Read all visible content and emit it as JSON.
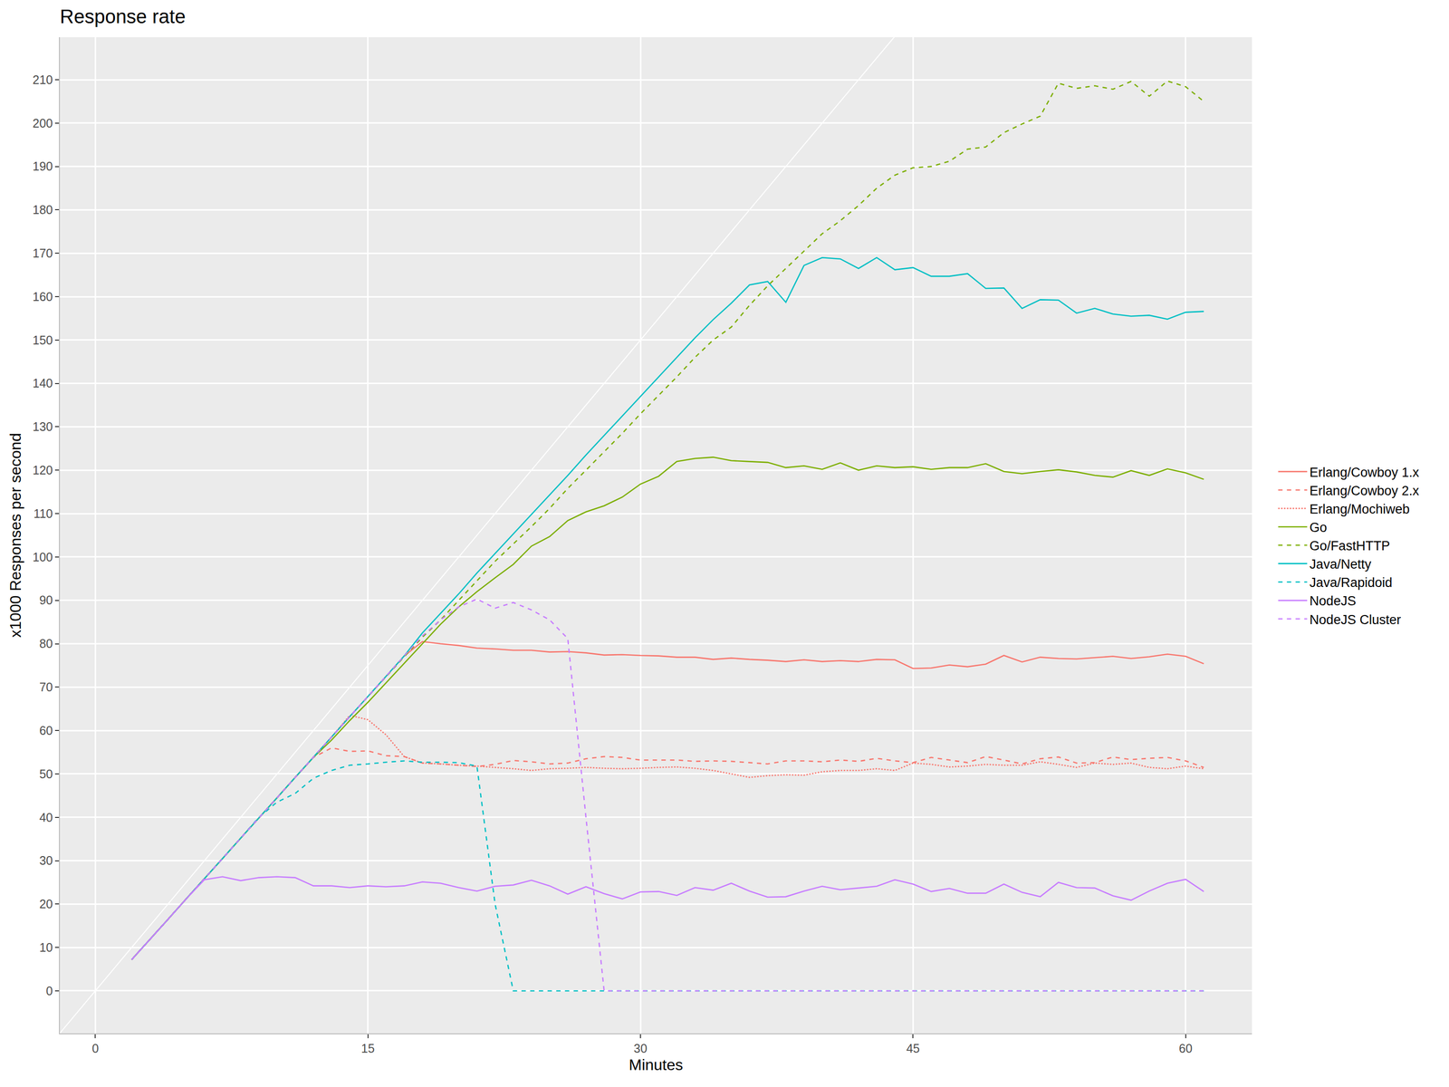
{
  "chart_data": {
    "type": "line",
    "title": "Response rate",
    "x_label": "Minutes",
    "y_label": "x1000 Responses per second",
    "x": [
      2,
      3,
      4,
      5,
      6,
      7,
      8,
      9,
      10,
      11,
      12,
      13,
      14,
      15,
      16,
      17,
      18,
      19,
      20,
      21,
      22,
      23,
      24,
      25,
      26,
      27,
      28,
      29,
      30,
      31,
      32,
      33,
      34,
      35,
      36,
      37,
      38,
      39,
      40,
      41,
      42,
      43,
      44,
      45,
      46,
      47,
      48,
      49,
      50,
      51,
      52,
      53,
      54,
      55,
      56,
      57,
      58,
      59,
      60,
      61
    ],
    "series": [
      {
        "name": "Erlang/Cowboy 1.x",
        "color": "#F8766D",
        "line_style": "solid",
        "values": [
          7.2,
          11.8,
          16.5,
          21.2,
          25.8,
          30.5,
          35.2,
          39.8,
          44.5,
          49.2,
          53.8,
          58.5,
          63.2,
          67.8,
          72.5,
          77.2,
          80.5,
          80,
          79.6,
          79,
          78.8,
          78.5,
          78.5,
          78.1,
          78.2,
          77.9,
          77.4,
          77.5,
          77.3,
          77.2,
          76.9,
          76.9,
          76.4,
          76.7,
          76.4,
          76.2,
          75.9,
          76.3,
          75.9,
          76.1,
          75.9,
          76.4,
          76.3,
          74.3,
          74.4,
          75.1,
          74.7,
          75.3,
          77.3,
          75.8,
          76.9,
          76.6,
          76.5,
          76.8,
          77.1,
          76.6,
          77,
          77.6,
          77.1,
          75.4
        ]
      },
      {
        "name": "Erlang/Cowboy 2.x",
        "color": "#F8766D",
        "line_style": "dashed",
        "values": [
          7.2,
          11.8,
          16.5,
          21.2,
          25.8,
          30.5,
          35.2,
          39.8,
          44.5,
          49.2,
          53.8,
          56,
          55.2,
          55.3,
          54.2,
          54,
          52.5,
          52.3,
          52,
          51.7,
          52.2,
          53.1,
          52.8,
          52.3,
          52.5,
          53.5,
          54,
          53.8,
          53.2,
          53.2,
          53.2,
          52.9,
          53,
          52.9,
          52.6,
          52.3,
          53,
          53,
          52.8,
          53.2,
          52.9,
          53.6,
          53,
          52.6,
          53.8,
          53.2,
          52.6,
          54,
          53.2,
          52.3,
          53.5,
          53.9,
          52.5,
          52.6,
          53.9,
          53.3,
          53.6,
          53.8,
          53,
          51.5
        ]
      },
      {
        "name": "Erlang/Mochiweb",
        "color": "#F8766D",
        "line_style": "dotted",
        "values": [
          7.2,
          11.8,
          16.5,
          21.2,
          25.8,
          30.5,
          35.2,
          39.8,
          44.5,
          49.2,
          53.8,
          58.5,
          63.5,
          62.5,
          59,
          54,
          52.5,
          52.3,
          52,
          51.8,
          51.5,
          51.2,
          50.8,
          51.2,
          51.3,
          51.5,
          51.3,
          51.2,
          51.3,
          51.5,
          51.6,
          51.3,
          50.8,
          50,
          49.2,
          49.6,
          49.8,
          49.7,
          50.5,
          50.8,
          50.8,
          51.2,
          50.8,
          52.5,
          52.2,
          51.6,
          51.8,
          52.2,
          52,
          52,
          52.8,
          52.2,
          51.5,
          52.5,
          52.2,
          52.5,
          51.5,
          51.2,
          51.8,
          51.2
        ]
      },
      {
        "name": "Go",
        "color": "#7CAE00",
        "line_style": "solid",
        "values": [
          7.2,
          11.8,
          16.5,
          21.2,
          25.8,
          30.5,
          35.2,
          39.8,
          44.5,
          49.2,
          53.8,
          57.8,
          62.3,
          66.5,
          71,
          75.5,
          80,
          84.5,
          88.5,
          92,
          95.2,
          98.3,
          102.5,
          104.7,
          108.4,
          110.4,
          111.8,
          113.8,
          116.8,
          118.6,
          122,
          122.7,
          123,
          122.2,
          122,
          121.8,
          120.6,
          121,
          120.2,
          121.7,
          120,
          121,
          120.6,
          120.8,
          120.2,
          120.6,
          120.6,
          121.5,
          119.7,
          119.2,
          119.7,
          120.1,
          119.6,
          118.8,
          118.4,
          119.9,
          118.8,
          120.3,
          119.4,
          117.9
        ]
      },
      {
        "name": "Go/FastHTTP",
        "color": "#7CAE00",
        "line_style": "dashed",
        "values": [
          7.2,
          11.8,
          16.5,
          21.2,
          25.8,
          30.5,
          35.2,
          39.8,
          44.5,
          49.2,
          53.8,
          58.5,
          63.2,
          67.8,
          72.5,
          77,
          81.5,
          85.5,
          90,
          94.5,
          99,
          103,
          107,
          111.2,
          115.8,
          120,
          124.2,
          128.5,
          133,
          137.2,
          141.5,
          146,
          150,
          153,
          158,
          162.5,
          166.5,
          170.5,
          174.5,
          177.5,
          181,
          185,
          188,
          189.7,
          190,
          191.2,
          194,
          194.5,
          197.8,
          199.8,
          201.6,
          209.2,
          208,
          208.6,
          207.8,
          209.6,
          206.2,
          209.7,
          208.4,
          205
        ]
      },
      {
        "name": "Java/Netty",
        "color": "#00BFC4",
        "line_style": "solid",
        "values": [
          7.2,
          11.8,
          16.5,
          21.2,
          25.8,
          30.5,
          35.2,
          39.8,
          44.5,
          49.2,
          53.8,
          58.5,
          63.2,
          67.8,
          72.5,
          77.2,
          82.5,
          87,
          91.5,
          96.3,
          100.8,
          105.3,
          109.8,
          114.3,
          118.8,
          123.5,
          128,
          132.5,
          137,
          141.5,
          146,
          150.5,
          154.7,
          158.5,
          162.7,
          163.5,
          158.7,
          167.2,
          169,
          168.7,
          166.5,
          169,
          166.2,
          166.7,
          164.7,
          164.7,
          165.3,
          161.9,
          162,
          157.3,
          159.3,
          159.2,
          156.2,
          157.3,
          156,
          155.5,
          155.7,
          154.8,
          156.4,
          156.6
        ]
      },
      {
        "name": "Java/Rapidoid",
        "color": "#00BFC4",
        "line_style": "dashed",
        "values": [
          7.2,
          11.8,
          16.5,
          21.2,
          25.8,
          30.5,
          35.2,
          40,
          43.5,
          45.5,
          49,
          50.8,
          52,
          52.3,
          52.7,
          53,
          52.7,
          52.7,
          52.6,
          51.8,
          20,
          0,
          0,
          0,
          0,
          0,
          0,
          0,
          0,
          0,
          0,
          0,
          0,
          0,
          0,
          0,
          0,
          0,
          0,
          0,
          0,
          0,
          0,
          0,
          0,
          0,
          0,
          0,
          0,
          0,
          0,
          0,
          0,
          0,
          0,
          0,
          0,
          0,
          0,
          0
        ]
      },
      {
        "name": "NodeJS",
        "color": "#C77CFF",
        "line_style": "solid",
        "values": [
          7.2,
          11.8,
          16.5,
          21.2,
          25.6,
          26.3,
          25.4,
          26.1,
          26.3,
          26.1,
          24.2,
          24.2,
          23.8,
          24.2,
          24,
          24.2,
          25.1,
          24.8,
          23.8,
          23,
          24.1,
          24.4,
          25.5,
          24.2,
          22.3,
          24,
          22.4,
          21.2,
          22.8,
          22.9,
          22,
          23.8,
          23.2,
          24.8,
          23,
          21.6,
          21.7,
          23,
          24.1,
          23.3,
          23.7,
          24.1,
          25.6,
          24.6,
          22.9,
          23.6,
          22.5,
          22.5,
          24.6,
          22.7,
          21.7,
          25,
          23.8,
          23.7,
          21.9,
          20.9,
          23,
          24.8,
          25.7,
          22.9
        ]
      },
      {
        "name": "NodeJS Cluster",
        "color": "#C77CFF",
        "line_style": "dashed",
        "values": [
          7.2,
          11.8,
          16.5,
          21.2,
          25.8,
          30.5,
          35.2,
          39.8,
          44.5,
          49.2,
          53.8,
          58.5,
          63.2,
          67.8,
          72.5,
          77.2,
          81.8,
          85.5,
          88.5,
          90.3,
          88.2,
          89.5,
          87.8,
          85.5,
          81.2,
          40,
          0,
          0,
          0,
          0,
          0,
          0,
          0,
          0,
          0,
          0,
          0,
          0,
          0,
          0,
          0,
          0,
          0,
          0,
          0,
          0,
          0,
          0,
          0,
          0,
          0,
          0,
          0,
          0,
          0,
          0,
          0,
          0,
          0,
          0
        ]
      }
    ],
    "reference_line": {
      "x": [
        -2,
        44
      ],
      "values": [
        -10,
        220
      ],
      "color": "#ffffff"
    },
    "xlim": [
      -1.95,
      63.65
    ],
    "ylim": [
      -9.8,
      219.8
    ],
    "xticks": [
      0,
      15,
      30,
      45,
      60
    ],
    "yticks": [
      0,
      10,
      20,
      30,
      40,
      50,
      60,
      70,
      80,
      90,
      100,
      110,
      120,
      130,
      140,
      150,
      160,
      170,
      180,
      190,
      200,
      210
    ],
    "grid": true,
    "legend": "right"
  }
}
